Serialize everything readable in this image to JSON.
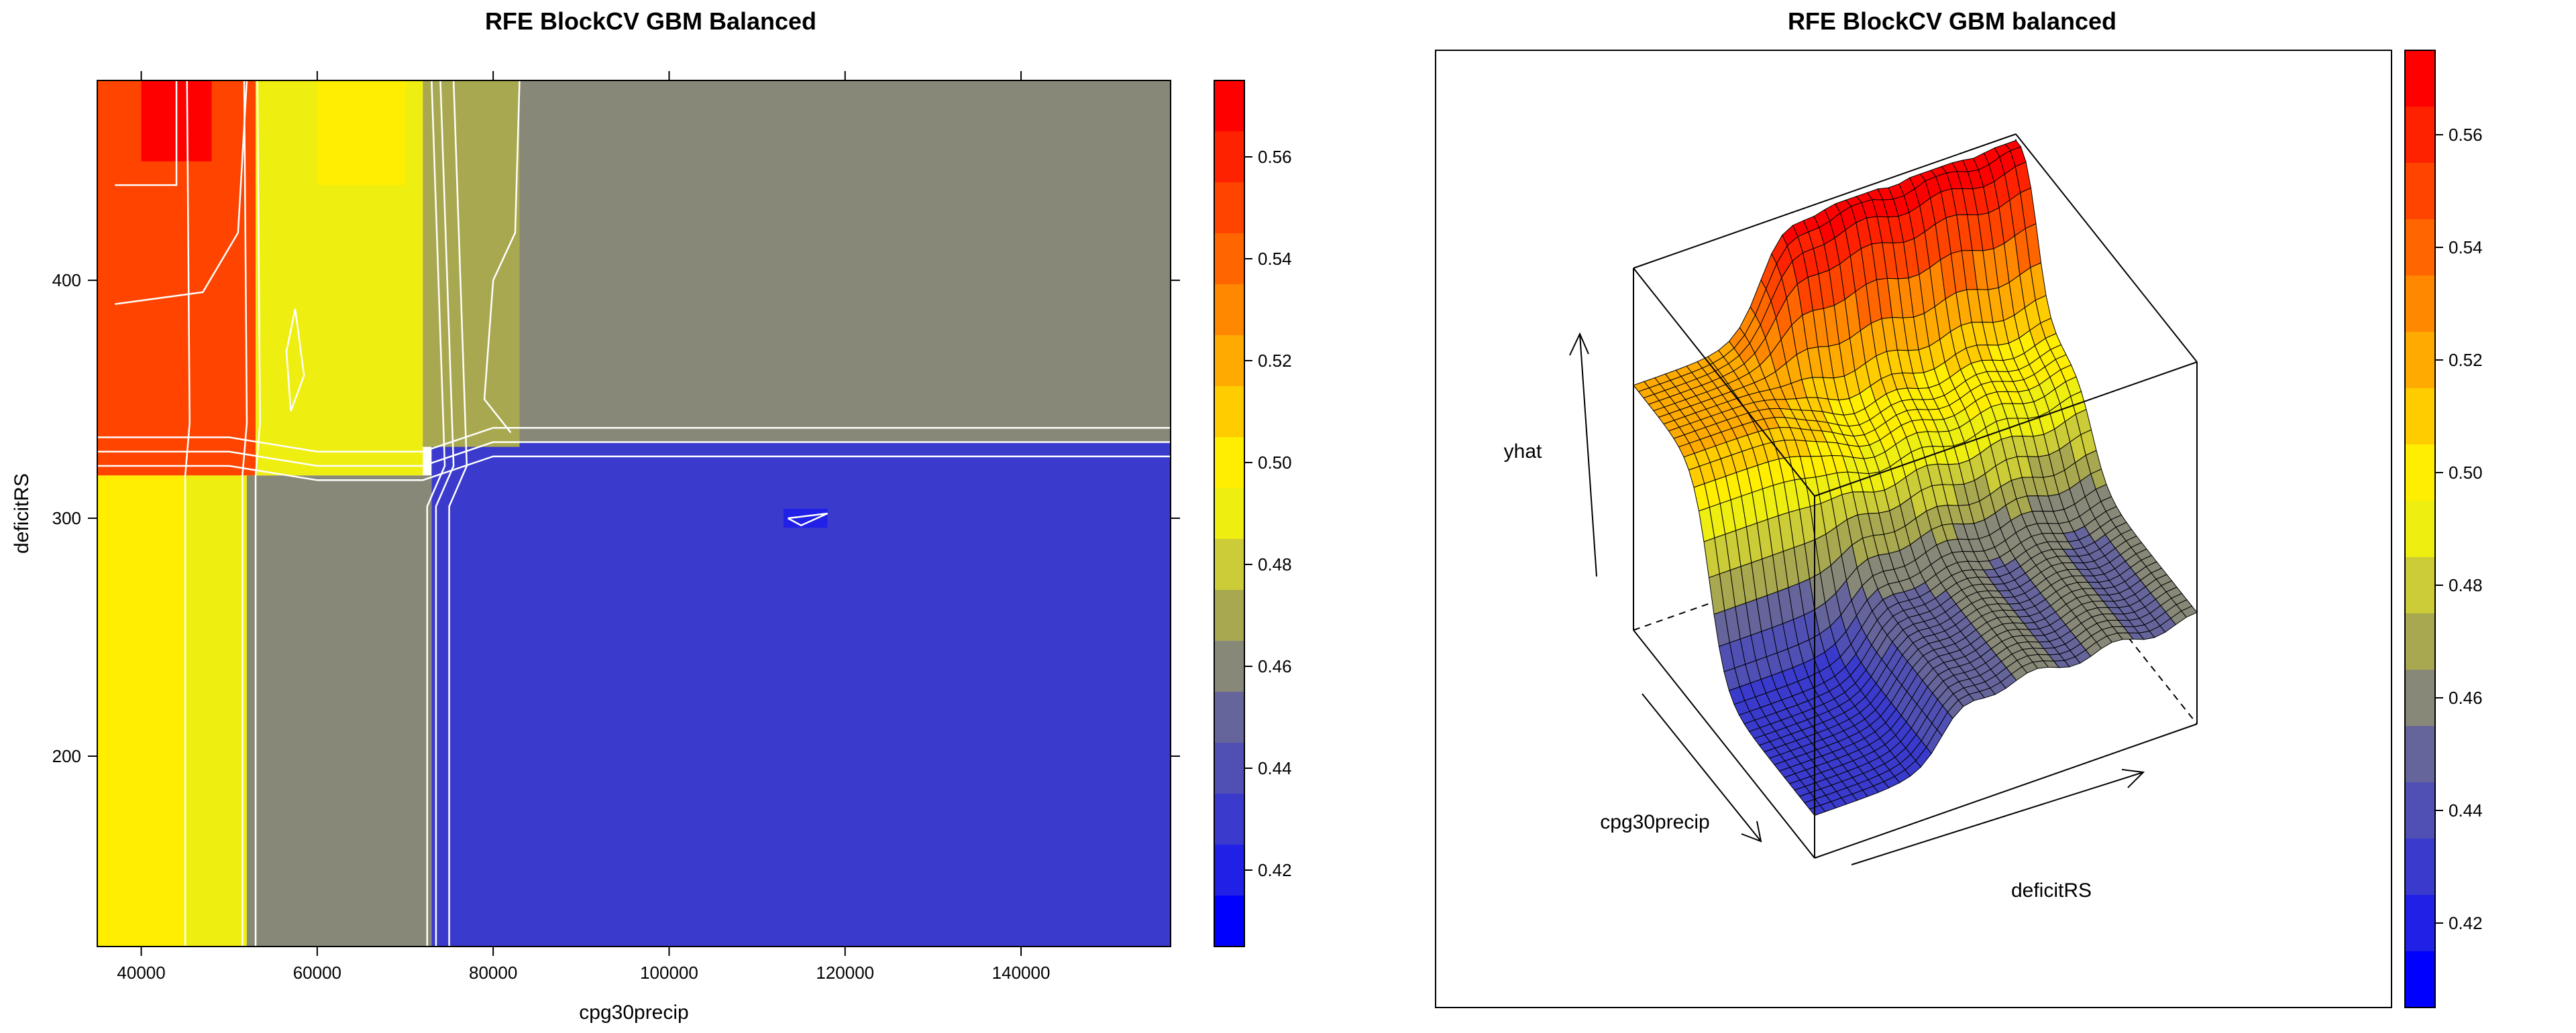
{
  "chart_data": [
    {
      "type": "heatmap",
      "title": "RFE BlockCV GBM Balanced",
      "xlabel": "cpg30precip",
      "ylabel": "deficitRS",
      "xlim": [
        35000,
        157000
      ],
      "ylim": [
        118000,
        484000
      ],
      "xlim_note": "x axis in cpg30precip units",
      "x_ticks": [
        "40000",
        "60000",
        "80000",
        "100000",
        "120000",
        "140000"
      ],
      "x_tick_values": [
        40000,
        60000,
        80000,
        100000,
        120000,
        140000
      ],
      "y_ticks": [
        "200",
        "300",
        "400"
      ],
      "y_tick_values": [
        200,
        300,
        400
      ],
      "y_range": [
        120,
        484
      ],
      "colorbar": {
        "ticks": [
          "0.42",
          "0.44",
          "0.46",
          "0.48",
          "0.50",
          "0.52",
          "0.54",
          "0.56"
        ],
        "tick_values": [
          0.42,
          0.44,
          0.46,
          0.48,
          0.5,
          0.52,
          0.54,
          0.56
        ],
        "range": [
          0.405,
          0.575
        ],
        "levels": [
          0.405,
          0.415,
          0.425,
          0.435,
          0.445,
          0.455,
          0.465,
          0.475,
          0.485,
          0.495,
          0.505,
          0.515,
          0.525,
          0.535,
          0.545,
          0.555,
          0.565,
          0.575
        ],
        "colors": [
          "#0000FF",
          "#2020E6",
          "#3A3ACD",
          "#5050B4",
          "#65659C",
          "#888878",
          "#A8A850",
          "#CCCC38",
          "#EEEE10",
          "#FFEE00",
          "#FFCC00",
          "#FFAA00",
          "#FF8800",
          "#FF6600",
          "#FF4400",
          "#FF2200",
          "#FF0000"
        ]
      },
      "regions": [
        {
          "x": [
            35000,
            45000
          ],
          "y": [
            120,
            318
          ],
          "value": 0.5
        },
        {
          "x": [
            45000,
            52000
          ],
          "y": [
            120,
            318
          ],
          "value": 0.49
        },
        {
          "x": [
            52000,
            73000
          ],
          "y": [
            120,
            318
          ],
          "value": 0.455
        },
        {
          "x": [
            73000,
            157000
          ],
          "y": [
            120,
            332
          ],
          "value": 0.425
        },
        {
          "x": [
            35000,
            53000
          ],
          "y": [
            318,
            484
          ],
          "value": 0.545
        },
        {
          "x": [
            40000,
            48000
          ],
          "y": [
            450,
            484
          ],
          "value": 0.565
        },
        {
          "x": [
            53000,
            72000
          ],
          "y": [
            318,
            484
          ],
          "value": 0.49
        },
        {
          "x": [
            60000,
            70000
          ],
          "y": [
            440,
            484
          ],
          "value": 0.5
        },
        {
          "x": [
            72000,
            83000
          ],
          "y": [
            330,
            484
          ],
          "value": 0.465
        },
        {
          "x": [
            83000,
            157000
          ],
          "y": [
            332,
            484
          ],
          "value": 0.455
        },
        {
          "x": [
            113000,
            118000
          ],
          "y": [
            296,
            304
          ],
          "value": 0.415
        }
      ]
    },
    {
      "type": "surface",
      "title": "RFE BlockCV GBM balanced",
      "xlabel": "deficitRS",
      "ylabel": "cpg30precip",
      "zlabel": "yhat",
      "colorbar": {
        "ticks": [
          "0.42",
          "0.44",
          "0.46",
          "0.48",
          "0.50",
          "0.52",
          "0.54",
          "0.56"
        ],
        "tick_values": [
          0.42,
          0.44,
          0.46,
          0.48,
          0.5,
          0.52,
          0.54,
          0.56
        ],
        "range": [
          0.405,
          0.575
        ]
      },
      "z_range": [
        0.405,
        0.575
      ]
    }
  ]
}
